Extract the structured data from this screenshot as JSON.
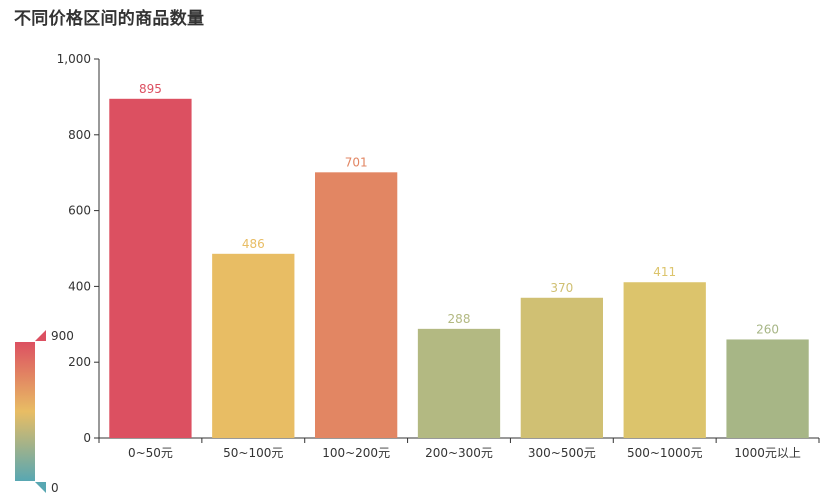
{
  "chart_data": {
    "type": "bar",
    "title": "不同价格区间的商品数量",
    "categories": [
      "0~50元",
      "50~100元",
      "100~200元",
      "200~300元",
      "300~500元",
      "500~1000元",
      "1000元以上"
    ],
    "values": [
      895,
      486,
      701,
      288,
      370,
      411,
      260
    ],
    "colors": [
      "#dc5061",
      "#e8bd64",
      "#e28663",
      "#b3b982",
      "#d0c073",
      "#dcc46c",
      "#a7b686"
    ],
    "ylim": [
      0,
      1000
    ],
    "yticks": [
      0,
      200,
      400,
      600,
      800,
      1000
    ],
    "ytick_labels": [
      "0",
      "200",
      "400",
      "600",
      "800",
      "1,000"
    ],
    "visual_map": {
      "min": 0,
      "max": 900,
      "min_label": "0",
      "max_label": "900",
      "gradient": [
        "#dc5061",
        "#e8bd64",
        "#58a7b2"
      ]
    }
  }
}
